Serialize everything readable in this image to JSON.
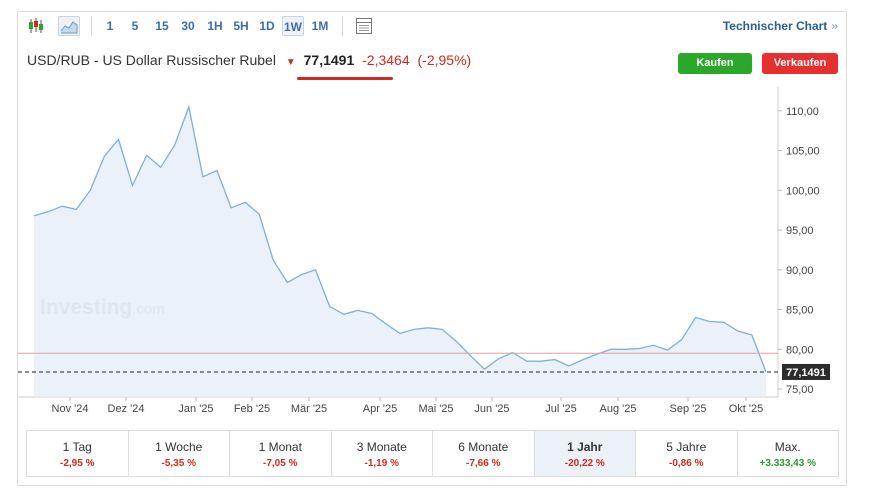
{
  "toolbar": {
    "timeframes": [
      "1",
      "5",
      "15",
      "30",
      "1H",
      "5H",
      "1D",
      "1W",
      "1M"
    ],
    "active_timeframe": "1W",
    "technical_chart_label": "Technischer Chart",
    "technical_chart_arrow": "»",
    "icons": [
      "candlestick-icon",
      "area-chart-icon",
      "table-view-icon"
    ]
  },
  "header": {
    "instrument": "USD/RUB - US Dollar Russischer Rubel",
    "direction_icon": "down-arrow-icon",
    "price": "77,1491",
    "change_abs": "-2,3464",
    "change_pct": "(-2,95%)",
    "buy_label": "Kaufen",
    "sell_label": "Verkaufen"
  },
  "colors": {
    "line": "#7fb0d8",
    "area": "#e6eef7",
    "negative": "#d2291e",
    "positive": "#2a9a2a",
    "buy": "#2ba72b",
    "sell": "#e6302f",
    "ref_line": "#e8a0a0"
  },
  "chart_data": {
    "type": "area",
    "watermark": "Investing.com",
    "x_tick_labels": [
      "Nov '24",
      "Dez '24",
      "Jan '25",
      "Feb '25",
      "Mär '25",
      "Apr '25",
      "Mai '25",
      "Jun '25",
      "Jul '25",
      "Aug '25",
      "Sep '25",
      "Okt '25"
    ],
    "y_tick_labels": [
      "75,00",
      "80,00",
      "85,00",
      "90,00",
      "95,00",
      "100,00",
      "105,00",
      "110,00"
    ],
    "ylim": [
      74,
      113
    ],
    "reference_line": 79.5,
    "last_value": 77.1491,
    "last_value_label": "77,1491",
    "values": [
      96.8,
      97.3,
      98.0,
      97.6,
      100.0,
      104.3,
      106.4,
      100.6,
      104.4,
      102.9,
      105.7,
      110.5,
      101.7,
      102.5,
      97.8,
      98.5,
      97.0,
      91.2,
      88.4,
      89.4,
      90.0,
      85.4,
      84.4,
      84.9,
      84.5,
      83.2,
      82.0,
      82.5,
      82.7,
      82.5,
      81.0,
      79.2,
      77.5,
      78.8,
      79.6,
      78.5,
      78.5,
      78.7,
      77.9,
      78.7,
      79.4,
      80.0,
      80.0,
      80.1,
      80.5,
      79.9,
      81.2,
      84.0,
      83.5,
      83.4,
      82.3,
      81.8,
      77.1491
    ]
  },
  "performance": [
    {
      "label": "1 Tag",
      "value": "-2,95 %",
      "sign": "neg"
    },
    {
      "label": "1 Woche",
      "value": "-5,35 %",
      "sign": "neg"
    },
    {
      "label": "1 Monat",
      "value": "-7,05 %",
      "sign": "neg"
    },
    {
      "label": "3 Monate",
      "value": "-1,19 %",
      "sign": "neg"
    },
    {
      "label": "6 Monate",
      "value": "-7,66 %",
      "sign": "neg"
    },
    {
      "label": "1 Jahr",
      "value": "-20,22 %",
      "sign": "neg",
      "active": true
    },
    {
      "label": "5 Jahre",
      "value": "-0,86 %",
      "sign": "neg"
    },
    {
      "label": "Max.",
      "value": "+3.333,43 %",
      "sign": "pos"
    }
  ]
}
